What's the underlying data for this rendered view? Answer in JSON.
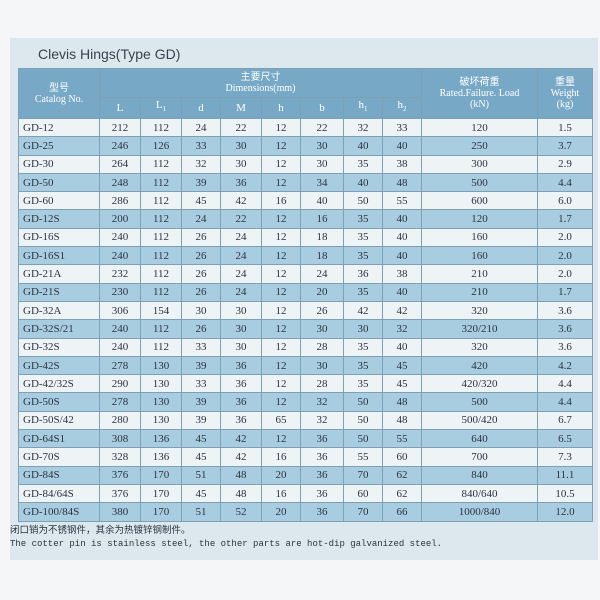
{
  "title": "Clevis Hings(Type GD)",
  "header": {
    "catalog": [
      "型号",
      "Catalog No."
    ],
    "dimensions": [
      "主要尺寸",
      "Dimensions(mm)"
    ],
    "dimension_columns": [
      {
        "text": "L"
      },
      {
        "text": "L",
        "sub": "1"
      },
      {
        "text": "d"
      },
      {
        "text": "M"
      },
      {
        "text": "h"
      },
      {
        "text": "b"
      },
      {
        "text": "h",
        "sub": "1"
      },
      {
        "text": "h",
        "sub": "2"
      }
    ],
    "load": [
      "破坏荷重",
      "Rated.Failure. Load",
      "(kN)"
    ],
    "weight": [
      "重量",
      "Weight",
      "(kg)"
    ]
  },
  "table": {
    "rows": [
      [
        "GD-12",
        "212",
        "112",
        "24",
        "22",
        "12",
        "22",
        "32",
        "33",
        "120",
        "1.5"
      ],
      [
        "GD-25",
        "246",
        "126",
        "33",
        "30",
        "12",
        "30",
        "40",
        "40",
        "250",
        "3.7"
      ],
      [
        "GD-30",
        "264",
        "112",
        "32",
        "30",
        "12",
        "30",
        "35",
        "38",
        "300",
        "2.9"
      ],
      [
        "GD-50",
        "248",
        "112",
        "39",
        "36",
        "12",
        "34",
        "40",
        "48",
        "500",
        "4.4"
      ],
      [
        "GD-60",
        "286",
        "112",
        "45",
        "42",
        "16",
        "40",
        "50",
        "55",
        "600",
        "6.0"
      ],
      [
        "GD-12S",
        "200",
        "112",
        "24",
        "22",
        "12",
        "16",
        "35",
        "40",
        "120",
        "1.7"
      ],
      [
        "GD-16S",
        "240",
        "112",
        "26",
        "24",
        "12",
        "18",
        "35",
        "40",
        "160",
        "2.0"
      ],
      [
        "GD-16S1",
        "240",
        "112",
        "26",
        "24",
        "12",
        "18",
        "35",
        "40",
        "160",
        "2.0"
      ],
      [
        "GD-21A",
        "232",
        "112",
        "26",
        "24",
        "12",
        "24",
        "36",
        "38",
        "210",
        "2.0"
      ],
      [
        "GD-21S",
        "230",
        "112",
        "26",
        "24",
        "12",
        "20",
        "35",
        "40",
        "210",
        "1.7"
      ],
      [
        "GD-32A",
        "306",
        "154",
        "30",
        "30",
        "12",
        "26",
        "42",
        "42",
        "320",
        "3.6"
      ],
      [
        "GD-32S/21",
        "240",
        "112",
        "26",
        "30",
        "12",
        "30",
        "30",
        "32",
        "320/210",
        "3.6"
      ],
      [
        "GD-32S",
        "240",
        "112",
        "33",
        "30",
        "12",
        "28",
        "35",
        "40",
        "320",
        "3.6"
      ],
      [
        "GD-42S",
        "278",
        "130",
        "39",
        "36",
        "12",
        "30",
        "35",
        "45",
        "420",
        "4.2"
      ],
      [
        "GD-42/32S",
        "290",
        "130",
        "33",
        "36",
        "12",
        "28",
        "35",
        "45",
        "420/320",
        "4.4"
      ],
      [
        "GD-50S",
        "278",
        "130",
        "39",
        "36",
        "12",
        "32",
        "50",
        "48",
        "500",
        "4.4"
      ],
      [
        "GD-50S/42",
        "280",
        "130",
        "39",
        "36",
        "65",
        "32",
        "50",
        "48",
        "500/420",
        "6.7"
      ],
      [
        "GD-64S1",
        "308",
        "136",
        "45",
        "42",
        "12",
        "36",
        "50",
        "55",
        "640",
        "6.5"
      ],
      [
        "GD-70S",
        "328",
        "136",
        "45",
        "42",
        "16",
        "36",
        "55",
        "60",
        "700",
        "7.3"
      ],
      [
        "GD-84S",
        "376",
        "170",
        "51",
        "48",
        "20",
        "36",
        "70",
        "62",
        "840",
        "11.1"
      ],
      [
        "GD-84/64S",
        "376",
        "170",
        "45",
        "48",
        "16",
        "36",
        "60",
        "62",
        "840/640",
        "10.5"
      ],
      [
        "GD-100/84S",
        "380",
        "170",
        "51",
        "52",
        "20",
        "36",
        "70",
        "66",
        "1000/840",
        "12.0"
      ]
    ]
  },
  "notes": [
    "闭口销为不锈钢件，其余为热镀锌钢制件。",
    "The cotter pin is stainless steel, the other parts are hot-dip galvanized steel."
  ]
}
